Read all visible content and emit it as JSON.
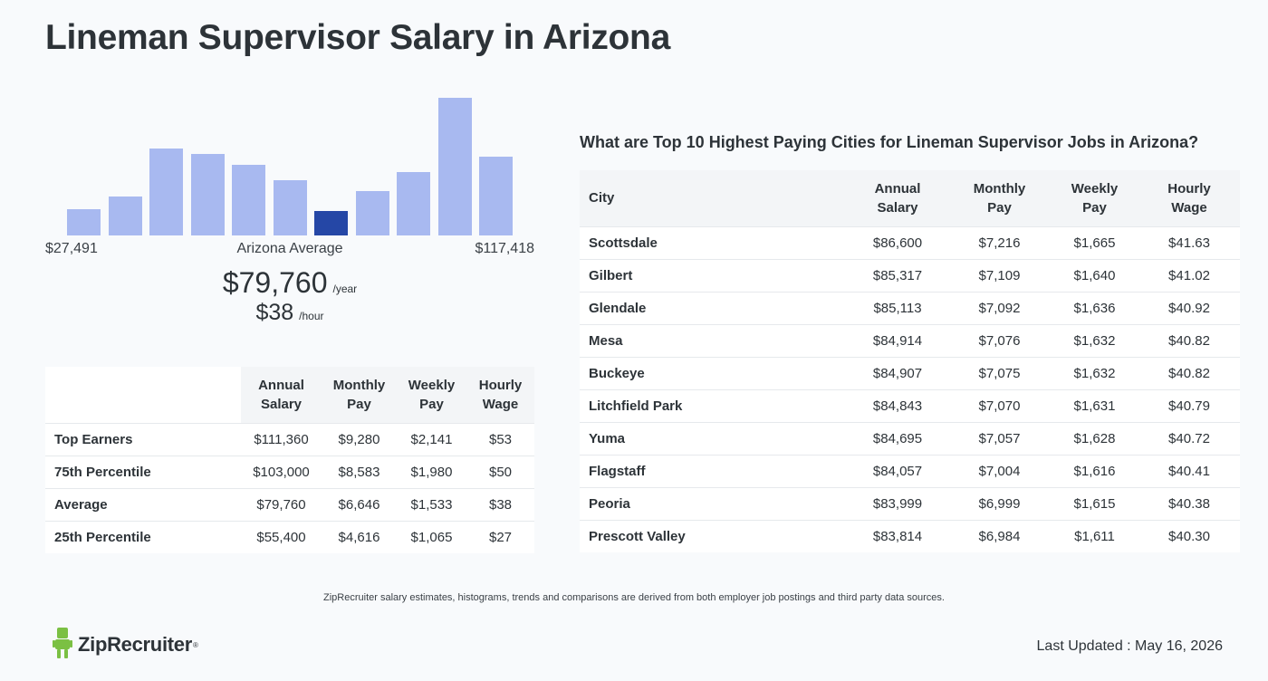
{
  "page": {
    "title": "Lineman Supervisor Salary in Arizona"
  },
  "histogram": {
    "min_label": "$27,491",
    "mid_label": "Arizona Average",
    "max_label": "$117,418",
    "bar_color": "#a8b9f0",
    "highlight_color": "#2547a6",
    "highlight_index": 6,
    "relative_heights": [
      0.19,
      0.28,
      0.63,
      0.59,
      0.51,
      0.4,
      0.18,
      0.32,
      0.46,
      1.0,
      0.57
    ]
  },
  "average": {
    "annual": "$79,760",
    "annual_unit": "/year",
    "hourly": "$38",
    "hourly_unit": "/hour"
  },
  "percentile_table": {
    "headers": [
      "Annual Salary",
      "Monthly Pay",
      "Weekly Pay",
      "Hourly Wage"
    ],
    "rows": [
      {
        "label": "Top Earners",
        "values": [
          "$111,360",
          "$9,280",
          "$2,141",
          "$53"
        ]
      },
      {
        "label": "75th Percentile",
        "values": [
          "$103,000",
          "$8,583",
          "$1,980",
          "$50"
        ]
      },
      {
        "label": "Average",
        "values": [
          "$79,760",
          "$6,646",
          "$1,533",
          "$38"
        ]
      },
      {
        "label": "25th Percentile",
        "values": [
          "$55,400",
          "$4,616",
          "$1,065",
          "$27"
        ]
      }
    ]
  },
  "cities": {
    "heading": "What are Top 10 Highest Paying Cities for Lineman Supervisor Jobs in Arizona?",
    "headers": [
      "City",
      "Annual Salary",
      "Monthly Pay",
      "Weekly Pay",
      "Hourly Wage"
    ],
    "rows": [
      {
        "city": "Scottsdale",
        "values": [
          "$86,600",
          "$7,216",
          "$1,665",
          "$41.63"
        ]
      },
      {
        "city": "Gilbert",
        "values": [
          "$85,317",
          "$7,109",
          "$1,640",
          "$41.02"
        ]
      },
      {
        "city": "Glendale",
        "values": [
          "$85,113",
          "$7,092",
          "$1,636",
          "$40.92"
        ]
      },
      {
        "city": "Mesa",
        "values": [
          "$84,914",
          "$7,076",
          "$1,632",
          "$40.82"
        ]
      },
      {
        "city": "Buckeye",
        "values": [
          "$84,907",
          "$7,075",
          "$1,632",
          "$40.82"
        ]
      },
      {
        "city": "Litchfield Park",
        "values": [
          "$84,843",
          "$7,070",
          "$1,631",
          "$40.79"
        ]
      },
      {
        "city": "Yuma",
        "values": [
          "$84,695",
          "$7,057",
          "$1,628",
          "$40.72"
        ]
      },
      {
        "city": "Flagstaff",
        "values": [
          "$84,057",
          "$7,004",
          "$1,616",
          "$40.41"
        ]
      },
      {
        "city": "Peoria",
        "values": [
          "$83,999",
          "$6,999",
          "$1,615",
          "$40.38"
        ]
      },
      {
        "city": "Prescott Valley",
        "values": [
          "$83,814",
          "$6,984",
          "$1,611",
          "$40.30"
        ]
      }
    ]
  },
  "footer": {
    "note": "ZipRecruiter salary estimates, histograms, trends and comparisons are derived from both employer job postings and third party data sources.",
    "logo_text": "ZipRecruiter",
    "logo_icon": "ziprecruiter-mascot-icon",
    "logo_color": "#7bc043",
    "updated": "Last Updated : May 16, 2026"
  }
}
